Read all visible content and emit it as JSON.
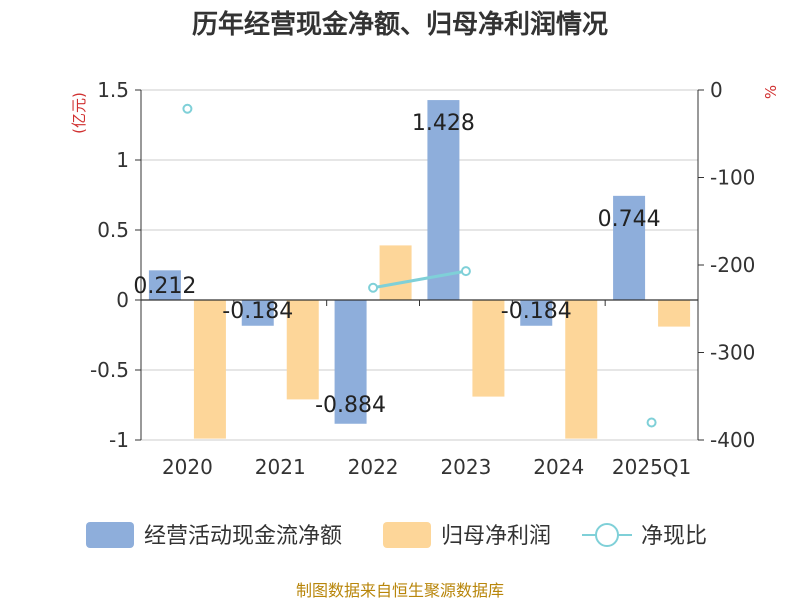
{
  "chart_data": {
    "type": "bar",
    "title": "历年经营现金净额、归母净利润情况",
    "categories": [
      "2020",
      "2021",
      "2022",
      "2023",
      "2024",
      "2025Q1"
    ],
    "ylim_left": [
      -1,
      1.5
    ],
    "yticks_left": [
      1.5,
      1,
      0.5,
      0,
      -0.5,
      -1
    ],
    "ytick_labels_left": [
      "1.5",
      "1",
      "0.5",
      "0",
      "-0.5",
      "-1"
    ],
    "ylim_right": [
      -400,
      0
    ],
    "yticks_right": [
      0,
      -100,
      -200,
      -300,
      -400
    ],
    "ytick_labels_right": [
      "0",
      "-100",
      "-200",
      "-300",
      "-400"
    ],
    "ylabel_left": "(亿元)",
    "ylabel_right": "%",
    "grid": true,
    "legend_position": "bottom",
    "series": [
      {
        "name": "经营活动现金流净额",
        "kind": "bar",
        "axis": "left",
        "color": "#8eaedb",
        "values": [
          0.212,
          -0.184,
          -0.884,
          1.428,
          -0.184,
          0.744
        ],
        "labels": [
          "0.212",
          "-0.184",
          "-0.884",
          "1.428",
          "-0.184",
          "0.744"
        ]
      },
      {
        "name": "归母净利润",
        "kind": "bar",
        "axis": "left",
        "color": "#fdd699",
        "values": [
          -0.99,
          -0.71,
          0.39,
          -0.69,
          -0.99,
          -0.19
        ]
      },
      {
        "name": "净现比",
        "kind": "line",
        "axis": "right",
        "color": "#7fd0d8",
        "values": [
          -21.4,
          null,
          -226,
          -207,
          null,
          -380
        ]
      }
    ],
    "source": "制图数据来自恒生聚源数据库"
  }
}
